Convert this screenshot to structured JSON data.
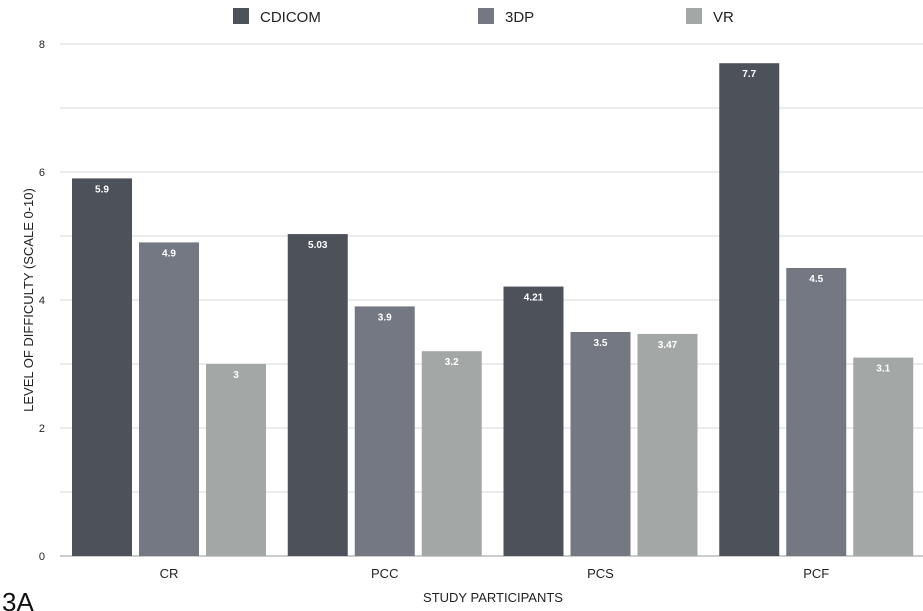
{
  "figure": {
    "panel_label": "3A"
  },
  "chart_data": {
    "type": "bar",
    "categories": [
      "CR",
      "PCC",
      "PCS",
      "PCF"
    ],
    "series": [
      {
        "name": "CDICOM",
        "values": [
          5.9,
          5.03,
          4.21,
          7.7
        ],
        "labels": [
          "5.9",
          "5.03",
          "4.21",
          "7.7"
        ],
        "color": "#4d5159"
      },
      {
        "name": "3DP",
        "values": [
          4.9,
          3.9,
          3.5,
          4.5
        ],
        "labels": [
          "4.9",
          "3.9",
          "3.5",
          "4.5"
        ],
        "color": "#747883"
      },
      {
        "name": "VR",
        "values": [
          3.0,
          3.2,
          3.47,
          3.1
        ],
        "labels": [
          "3",
          "3.2",
          "3.47",
          "3.1"
        ],
        "color": "#a3a7a6"
      }
    ],
    "xlabel": "STUDY PARTICIPANTS",
    "ylabel": "LEVEL OF DIFFICULTY  (SCALE 0-10)",
    "ylim": [
      0,
      8
    ],
    "yticks": [
      0,
      2,
      4,
      6,
      8
    ],
    "gridlines": [
      0,
      1,
      2,
      3,
      4,
      5,
      6,
      7,
      8
    ],
    "grid": true,
    "legend_position": "top"
  }
}
